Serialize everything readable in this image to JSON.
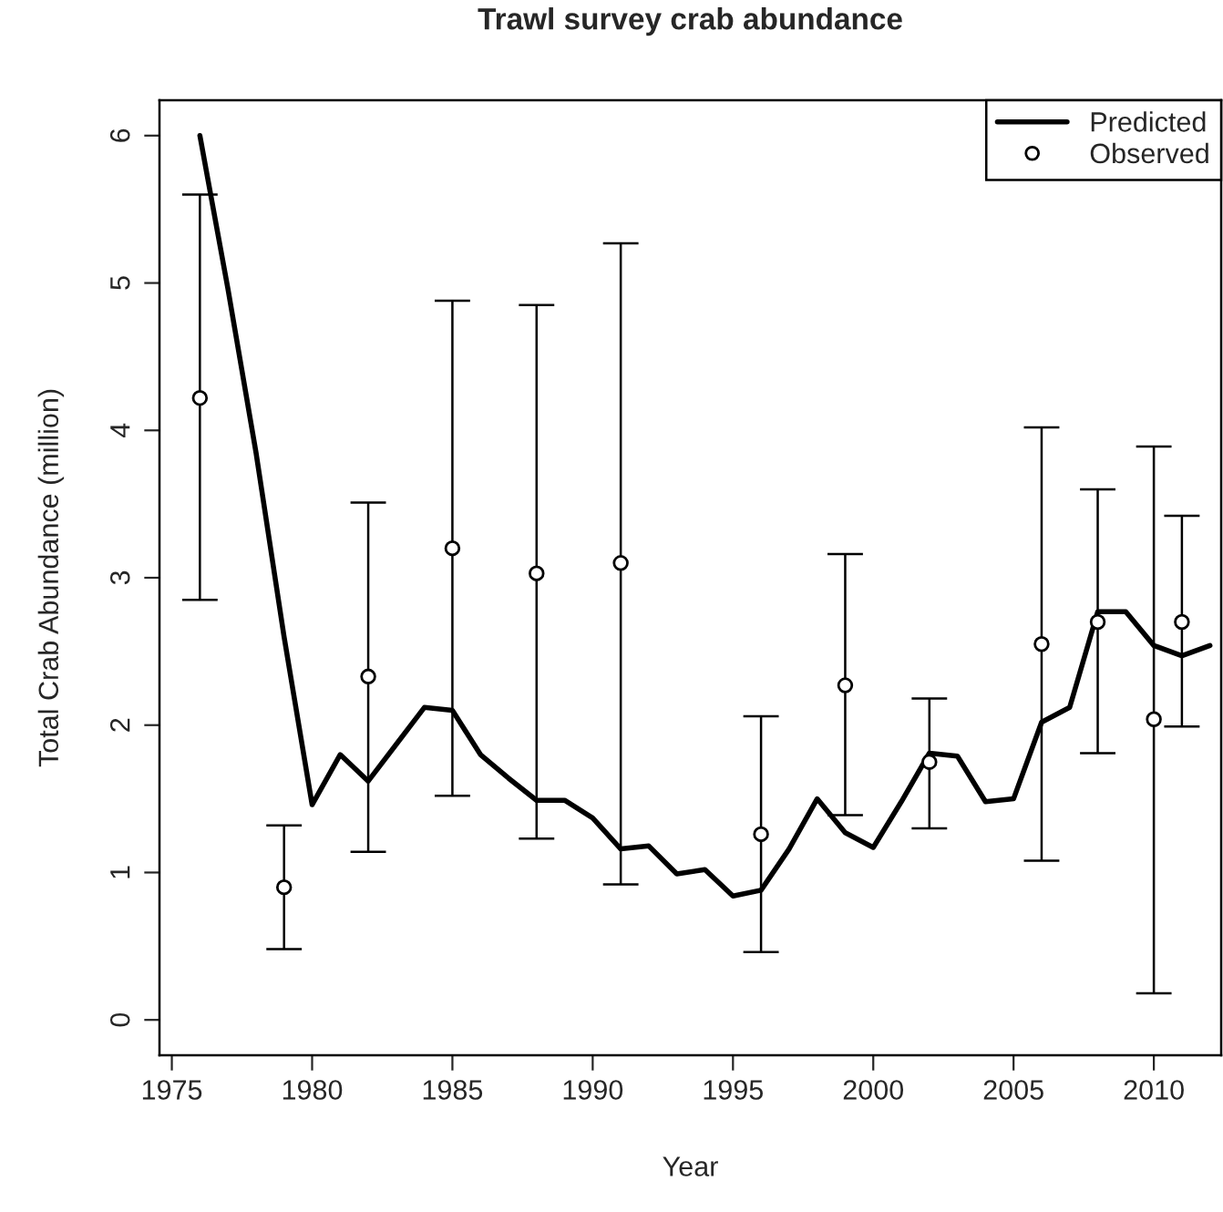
{
  "chart_data": {
    "type": "line",
    "title": "Trawl survey crab abundance",
    "xlabel": "Year",
    "ylabel": "Total Crab Abundance (million)",
    "xlim": [
      1974.56,
      2012.4
    ],
    "ylim": [
      -0.24,
      6.24
    ],
    "xticks": [
      1975,
      1980,
      1985,
      1990,
      1995,
      2000,
      2005,
      2010
    ],
    "yticks": [
      0,
      1,
      2,
      3,
      4,
      5,
      6
    ],
    "grid": false,
    "legend": "top right",
    "series": [
      {
        "name": "Predicted",
        "color": "#000000",
        "marker": "none",
        "line_style": "solid",
        "x": [
          1976,
          1977,
          1978,
          1979,
          1980,
          1981,
          1982,
          1983,
          1984,
          1985,
          1986,
          1987,
          1988,
          1989,
          1990,
          1991,
          1992,
          1993,
          1994,
          1995,
          1996,
          1997,
          1998,
          1999,
          2000,
          2001,
          2002,
          2003,
          2004,
          2005,
          2006,
          2007,
          2008,
          2009,
          2010,
          2011,
          2012
        ],
        "values": [
          6.0,
          4.96,
          3.85,
          2.6,
          1.46,
          1.8,
          1.62,
          1.87,
          2.12,
          2.1,
          1.8,
          1.64,
          1.49,
          1.49,
          1.37,
          1.16,
          1.18,
          0.99,
          1.02,
          0.84,
          0.88,
          1.16,
          1.5,
          1.27,
          1.17,
          1.48,
          1.81,
          1.79,
          1.48,
          1.5,
          2.02,
          2.12,
          2.77,
          2.77,
          2.54,
          2.47,
          2.54
        ]
      },
      {
        "name": "Observed",
        "type": "scatter",
        "color": "#000000",
        "marker": "circle",
        "x": [
          1976,
          1979,
          1982,
          1985,
          1988,
          1991,
          1996,
          1999,
          2002,
          2006,
          2008,
          2010,
          2011
        ],
        "values": [
          4.22,
          0.9,
          2.33,
          3.2,
          3.03,
          3.1,
          1.26,
          2.27,
          1.75,
          2.55,
          2.7,
          2.04,
          2.7
        ],
        "errors": [
          [
            2.85,
            5.6
          ],
          [
            0.48,
            1.32
          ],
          [
            1.14,
            3.51
          ],
          [
            1.52,
            4.88
          ],
          [
            1.23,
            4.85
          ],
          [
            0.92,
            5.27
          ],
          [
            0.46,
            2.06
          ],
          [
            1.39,
            3.16
          ],
          [
            1.3,
            2.18
          ],
          [
            1.08,
            4.02
          ],
          [
            1.81,
            3.6
          ],
          [
            0.18,
            3.89
          ],
          [
            1.99,
            3.42
          ]
        ]
      }
    ]
  }
}
